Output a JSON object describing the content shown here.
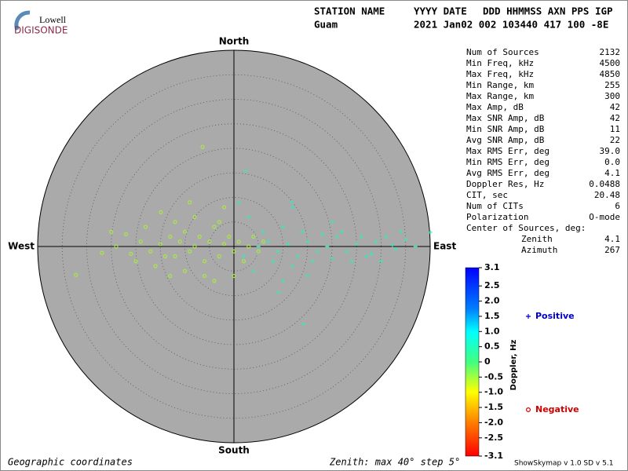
{
  "logo": {
    "top": "Lowell",
    "bottom": "DIGISONDE"
  },
  "header": {
    "labels": [
      "STATION NAME",
      "YYYY DATE",
      "DDD HHMMSS AXN PPS IGP"
    ],
    "values": [
      "Guam",
      "2021 Jan02 002 103440 417 100 -8E"
    ]
  },
  "stats": {
    "rows": [
      [
        "Num of Sources",
        "2132"
      ],
      [
        "Min Freq, kHz",
        "4500"
      ],
      [
        "Max Freq, kHz",
        "4850"
      ],
      [
        "Min Range, km",
        "255"
      ],
      [
        "Max Range, km",
        "300"
      ],
      [
        "Max Amp, dB",
        "42"
      ],
      [
        "Max SNR Amp, dB",
        "42"
      ],
      [
        "Min SNR Amp, dB",
        "11"
      ],
      [
        "Avg SNR Amp, dB",
        "22"
      ],
      [
        "Max RMS Err, deg",
        "39.0"
      ],
      [
        "Min RMS Err, deg",
        "0.0"
      ],
      [
        "Avg RMS Err, deg",
        "4.1"
      ],
      [
        "Doppler Res, Hz",
        "0.0488"
      ],
      [
        "CIT, sec",
        "20.48"
      ],
      [
        "Num of CITs",
        "6"
      ],
      [
        "Polarization",
        "O-mode"
      ]
    ],
    "center_title": "Center of Sources, deg:",
    "center_rows": [
      [
        "Zenith",
        "4.1"
      ],
      [
        "Azimuth",
        "267"
      ]
    ]
  },
  "footer": {
    "left": "Geographic coordinates",
    "middle": "Zenith: max 40°  step 5°",
    "right": "ShowSkymap v 1.0   SD v 5.1"
  },
  "chart_data": {
    "type": "scatter",
    "directions": {
      "north": "North",
      "south": "South",
      "east": "East",
      "west": "West"
    },
    "rlim": [
      0,
      40
    ],
    "rticks": [
      5,
      10,
      15,
      20,
      25,
      30,
      35
    ],
    "series": [
      {
        "name": "Positive",
        "marker": "+",
        "color": "#3fe3b8",
        "legend_color": "#0000c8",
        "x": [
          40,
          14.2,
          9.1,
          2.4,
          11.8,
          32.3,
          5,
          7,
          9,
          11,
          13,
          15,
          17,
          19,
          21,
          23,
          25,
          27,
          29,
          31,
          33,
          35,
          37,
          6,
          8,
          10,
          12,
          14,
          16,
          18,
          20,
          22,
          24,
          26,
          28,
          3,
          4,
          1,
          12,
          10,
          20,
          15,
          30,
          34,
          2
        ],
        "values": [
          2.9,
          -15.8,
          -9.4,
          15.4,
          9,
          0.3,
          0,
          1,
          -1,
          0.5,
          -2,
          1,
          -1,
          0,
          2,
          -1,
          0.5,
          -2,
          1,
          2,
          -0.5,
          1.5,
          0,
          3,
          -3,
          4,
          -4,
          3,
          -3,
          2.5,
          -2.5,
          3,
          -3,
          2,
          -1.5,
          6,
          -5,
          9,
          8,
          -7,
          5,
          -6,
          -3,
          3,
          -2
        ]
      },
      {
        "name": "Negative",
        "marker": "o",
        "color": "#a8e64a",
        "legend_color": "#d00000",
        "x": [
          -32.2,
          -26.9,
          -6.4,
          -14.9,
          -22,
          -19,
          -17,
          -15,
          -13,
          -12,
          -11,
          -10,
          -9,
          -8,
          -7,
          -6,
          -5,
          -4,
          -3,
          -2,
          -1,
          0,
          1,
          2,
          3,
          4,
          5,
          -20,
          -18,
          -16,
          -14,
          -12,
          -10,
          -8,
          -6,
          -4,
          -2,
          0,
          -24,
          -21,
          -9,
          -13,
          -3,
          6,
          -25
        ],
        "values": [
          -5.8,
          -1.3,
          20.3,
          7,
          2.5,
          1,
          -1,
          0.5,
          2,
          -2,
          1,
          3,
          -1,
          0,
          2,
          -3,
          1,
          4,
          -2,
          0.5,
          2,
          -1,
          1,
          -3,
          0,
          2,
          -1,
          -3,
          4,
          -4,
          -2,
          5,
          -5,
          6,
          -6,
          -7,
          8,
          -6,
          0,
          -1.5,
          9,
          -6,
          5,
          1,
          3
        ]
      }
    ],
    "colorbar": {
      "label": "Doppler, Hz",
      "lim": [
        -3.1,
        3.1
      ],
      "ticks": [
        3.1,
        2.5,
        {
          "value": 2,
          "label": "2.0"
        },
        1.5,
        {
          "value": 1,
          "label": "1.0"
        },
        0.5,
        0,
        -0.5,
        {
          "value": -1,
          "label": "-1.0"
        },
        -1.5,
        {
          "value": -2,
          "label": "-2.0"
        },
        -2.5,
        -3.1
      ]
    }
  }
}
